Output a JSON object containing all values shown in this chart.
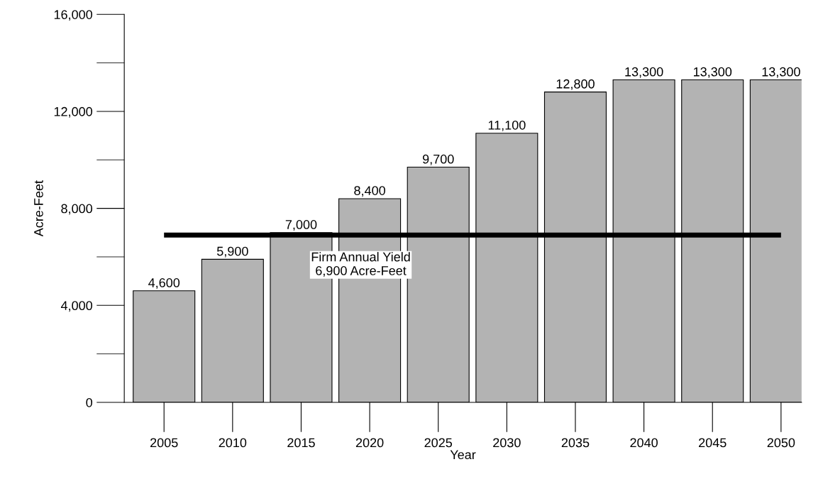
{
  "chart_data": {
    "type": "bar",
    "xlabel": "Year",
    "ylabel": "Acre-Feet",
    "categories": [
      "2005",
      "2010",
      "2015",
      "2020",
      "2025",
      "2030",
      "2035",
      "2040",
      "2045",
      "2050"
    ],
    "values": [
      4600,
      5900,
      7000,
      8400,
      9700,
      11100,
      12800,
      13300,
      13300,
      13300
    ],
    "color": "#b3b3b3",
    "value_labels": [
      "4,600",
      "5,900",
      "7,000",
      "8,400",
      "9,700",
      "11,100",
      "12,800",
      "13,300",
      "13,300",
      "13,300"
    ],
    "ylim": [
      0,
      16000
    ],
    "yticks": [
      0,
      {
        "value": 4000,
        "label": "4,000"
      },
      {
        "value": 8000,
        "label": "8,000"
      },
      {
        "value": 12000,
        "label": "12,000"
      },
      {
        "value": 16000,
        "label": "16,000"
      }
    ],
    "ref_lines": [
      {
        "axis": "y",
        "value": 6900,
        "label": "Firm Annual Yield\n6,900 Acre-Feet",
        "color": "#000000"
      }
    ],
    "grid": false
  }
}
